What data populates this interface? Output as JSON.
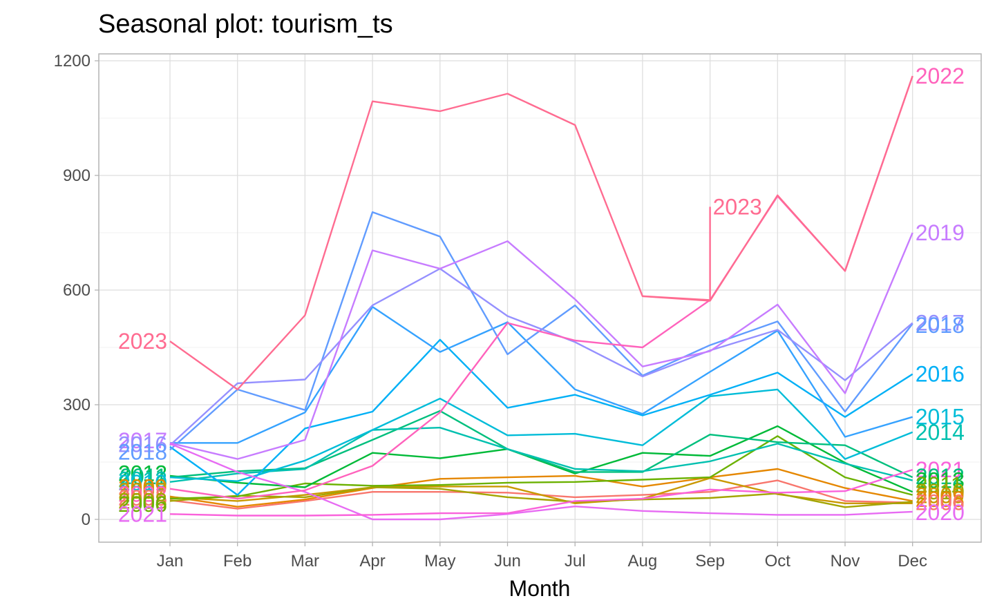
{
  "chart_data": {
    "type": "line",
    "title": "Seasonal plot: tourism_ts",
    "xlabel": "Month",
    "ylabel": "",
    "categories": [
      "Jan",
      "Feb",
      "Mar",
      "Apr",
      "May",
      "Jun",
      "Jul",
      "Aug",
      "Sep",
      "Oct",
      "Nov",
      "Dec"
    ],
    "ylim": [
      -60,
      1215
    ],
    "yticks": [
      0,
      300,
      600,
      900,
      1200
    ],
    "grid": true,
    "legend": "none",
    "series": [
      {
        "name": "2005",
        "color": "#F8766D",
        "values": [
          50,
          28,
          48,
          72,
          72,
          70,
          58,
          64,
          72,
          102,
          48,
          44
        ]
      },
      {
        "name": "2006",
        "color": "#E58700",
        "values": [
          60,
          33,
          52,
          82,
          106,
          110,
          114,
          86,
          110,
          132,
          82,
          48
        ]
      },
      {
        "name": "2007",
        "color": "#C99800",
        "values": [
          58,
          48,
          64,
          84,
          86,
          86,
          42,
          54,
          108,
          66,
          42,
          42
        ]
      },
      {
        "name": "2008",
        "color": "#A3A500",
        "values": [
          48,
          62,
          58,
          84,
          80,
          58,
          46,
          52,
          56,
          68,
          32,
          46
        ]
      },
      {
        "name": "2009",
        "color": "#6BB100",
        "values": [
          54,
          60,
          94,
          88,
          90,
          96,
          98,
          104,
          110,
          218,
          110,
          64
        ]
      },
      {
        "name": "2010",
        "color": "#00BA38",
        "values": [
          114,
          96,
          84,
          174,
          160,
          184,
          120,
          174,
          166,
          244,
          148,
          72
        ]
      },
      {
        "name": "2011",
        "color": "#00BF7D",
        "values": [
          110,
          126,
          134,
          208,
          284,
          184,
          124,
          124,
          222,
          202,
          194,
          110
        ]
      },
      {
        "name": "2012",
        "color": "#00C0AF",
        "values": [
          98,
          120,
          132,
          234,
          240,
          184,
          132,
          126,
          152,
          198,
          146,
          102
        ]
      },
      {
        "name": "2013",
        "color": "#00BCD8",
        "values": [
          110,
          100,
          154,
          234,
          316,
          220,
          224,
          194,
          322,
          340,
          158,
          228
        ]
      },
      {
        "name": "2014",
        "color": "#00B0F6",
        "values": [
          190,
          64,
          238,
          282,
          470,
          292,
          326,
          272,
          326,
          384,
          268,
          380
        ]
      },
      {
        "name": "2015",
        "color": "#35A2FF",
        "values": [
          200,
          200,
          280,
          556,
          438,
          516,
          340,
          276,
          386,
          494,
          216,
          268
        ]
      },
      {
        "name": "2016",
        "color": "#619CFF",
        "values": [
          182,
          340,
          286,
          804,
          740,
          432,
          560,
          376,
          456,
          518,
          282,
          512
        ]
      },
      {
        "name": "2017",
        "color": "#9590FF",
        "values": [
          194,
          356,
          366,
          560,
          656,
          532,
          464,
          374,
          442,
          496,
          364,
          514
        ]
      },
      {
        "name": "2018",
        "color": "#C77CFF",
        "values": [
          200,
          158,
          208,
          704,
          656,
          728,
          576,
          400,
          440,
          562,
          330,
          750
        ]
      },
      {
        "name": "2019",
        "color": "#E76BF3",
        "values": [
          198,
          124,
          72,
          0,
          0,
          14,
          34,
          22,
          16,
          12,
          12,
          20
        ]
      },
      {
        "name": "2020",
        "color": "#FA62DB",
        "values": [
          14,
          10,
          10,
          12,
          16,
          16,
          48,
          54,
          78,
          70,
          74,
          130
        ]
      },
      {
        "name": "2021",
        "color": "#FF62BC",
        "values": [
          80,
          54,
          76,
          140,
          280,
          514,
          468,
          450,
          574,
          846,
          650,
          1160
        ]
      },
      {
        "name": "2022",
        "color": "#FF6C91",
        "values": [
          466,
          340,
          534,
          1094,
          1068,
          1114,
          1032,
          584,
          572,
          848,
          650,
          1160
        ]
      },
      {
        "name": "2023",
        "color": "#FF6C91",
        "values": [
          null,
          null,
          null,
          null,
          null,
          null,
          null,
          null,
          818,
          null,
          null,
          null
        ]
      }
    ],
    "start_labels": [
      {
        "text": "2023",
        "color": "#FF6C91",
        "y": 466
      },
      {
        "text": "2017",
        "color": "#C77CFF",
        "y": 206
      },
      {
        "text": "2016",
        "color": "#9590FF",
        "y": 196
      },
      {
        "text": "2018",
        "color": "#619CFF",
        "y": 176
      },
      {
        "text": "2012",
        "color": "#00BA38",
        "y": 120
      },
      {
        "text": "2011",
        "color": "#00BF7D",
        "y": 112
      },
      {
        "text": "2013",
        "color": "#00C0AF",
        "y": 104
      },
      {
        "text": "2010",
        "color": "#00BCD8",
        "y": 96
      },
      {
        "text": "2009",
        "color": "#E58700",
        "y": 84
      },
      {
        "text": "2007",
        "color": "#C99800",
        "y": 74
      },
      {
        "text": "2022",
        "color": "#FF62BC",
        "y": 66
      },
      {
        "text": "2005",
        "color": "#F8766D",
        "y": 56
      },
      {
        "text": "2008",
        "color": "#A3A500",
        "y": 48
      },
      {
        "text": "2006",
        "color": "#6BB100",
        "y": 40
      },
      {
        "text": "2021",
        "color": "#E76BF3",
        "y": 14
      }
    ],
    "end_labels": [
      {
        "text": "2022",
        "color": "#FF62BC",
        "y": 1160
      },
      {
        "text": "2023",
        "color": "#FF6C91",
        "y": 818
      },
      {
        "text": "2019",
        "color": "#C77CFF",
        "y": 750
      },
      {
        "text": "2017",
        "color": "#9590FF",
        "y": 514
      },
      {
        "text": "2018",
        "color": "#619CFF",
        "y": 508
      },
      {
        "text": "2016",
        "color": "#00B0F6",
        "y": 380
      },
      {
        "text": "2015",
        "color": "#00BCD8",
        "y": 268
      },
      {
        "text": "2014",
        "color": "#00C0AF",
        "y": 228
      },
      {
        "text": "2021",
        "color": "#FA62DB",
        "y": 130
      },
      {
        "text": "2012",
        "color": "#00BF7D",
        "y": 112
      },
      {
        "text": "2013",
        "color": "#00BA38",
        "y": 102
      },
      {
        "text": "2011",
        "color": "#6BB100",
        "y": 90
      },
      {
        "text": "2010",
        "color": "#A3A500",
        "y": 72
      },
      {
        "text": "2009",
        "color": "#C99800",
        "y": 62
      },
      {
        "text": "2008",
        "color": "#E58700",
        "y": 52
      },
      {
        "text": "2006",
        "color": "#F8766D",
        "y": 44
      },
      {
        "text": "2020",
        "color": "#E76BF3",
        "y": 18
      }
    ]
  }
}
